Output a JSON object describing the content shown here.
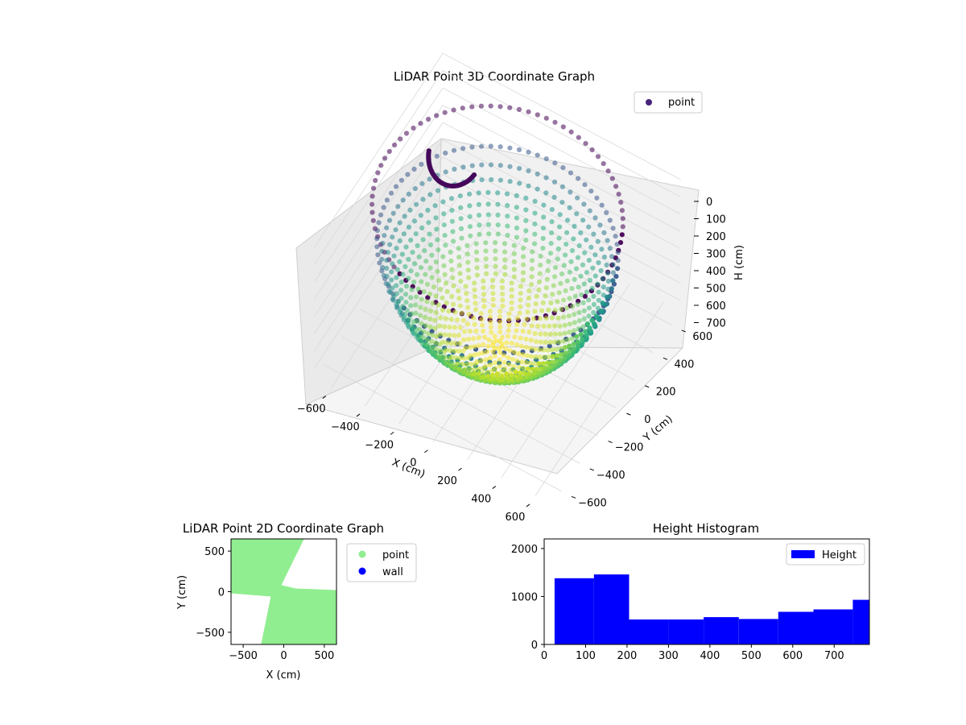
{
  "colors": {
    "point_legend": "#46237a",
    "point_2d": "#90ee90",
    "wall_2d": "#0000ff",
    "hist_bar": "#0000ff",
    "pane_fill": "#f2f2f2",
    "grid": "#d9d9d9",
    "colormap": "viridis"
  },
  "chart_data": [
    {
      "type": "scatter",
      "title": "LiDAR Point 3D Coordinate Graph",
      "xlabel": "X (cm)",
      "ylabel": "Y (cm)",
      "zlabel": "H (cm)",
      "xlim": [
        -700,
        700
      ],
      "ylim": [
        -700,
        700
      ],
      "zlim": [
        760,
        0
      ],
      "z_axis_inverted": true,
      "xticks": [
        "−600",
        "−400",
        "−200",
        "0",
        "200",
        "400",
        "600"
      ],
      "yticks": [
        "−600",
        "−400",
        "−200",
        "0",
        "200",
        "400",
        "600"
      ],
      "zticks": [
        "0",
        "100",
        "200",
        "300",
        "400",
        "500",
        "600",
        "700"
      ],
      "legend": [
        "point"
      ],
      "legend_position": "top-right",
      "grid": true,
      "shape": "hemispherical bowl of points, radius ≈ 650 cm, depth ≈ 760 cm, colored by height (viridis)"
    },
    {
      "type": "scatter",
      "title": "LiDAR Point 2D Coordinate Graph",
      "xlabel": "X (cm)",
      "ylabel": "Y (cm)",
      "xlim": [
        -650,
        650
      ],
      "ylim": [
        -650,
        650
      ],
      "xticks": [
        "−500",
        "0",
        "500"
      ],
      "yticks": [
        "−500",
        "0",
        "500"
      ],
      "legend": [
        "point",
        "wall"
      ],
      "legend_position": "outside-right",
      "point_region": [
        [
          -650,
          650
        ],
        [
          -650,
          -20
        ],
        [
          -160,
          -60
        ],
        [
          -280,
          -650
        ],
        [
          650,
          -650
        ],
        [
          650,
          20
        ],
        [
          150,
          40
        ],
        [
          -30,
          80
        ],
        [
          250,
          650
        ]
      ],
      "point_region_note": "green fill with two white wedge-shaped gaps (upper-right and lower-left)"
    },
    {
      "type": "bar",
      "title": "Height Histogram",
      "xlabel": "",
      "ylabel": "",
      "xlim": [
        0,
        785
      ],
      "ylim": [
        0,
        2200
      ],
      "xticks": [
        "0",
        "100",
        "200",
        "300",
        "400",
        "500",
        "600",
        "700"
      ],
      "yticks": [
        "0",
        "1000",
        "2000"
      ],
      "legend": [
        "Height"
      ],
      "legend_position": "top-right",
      "bins": [
        [
          25,
          120
        ],
        [
          120,
          205
        ],
        [
          205,
          300
        ],
        [
          300,
          385
        ],
        [
          385,
          470
        ],
        [
          470,
          565
        ],
        [
          565,
          650
        ],
        [
          650,
          745
        ],
        [
          745,
          785
        ]
      ],
      "values": [
        1380,
        1460,
        520,
        520,
        570,
        530,
        680,
        730,
        930
      ]
    }
  ]
}
